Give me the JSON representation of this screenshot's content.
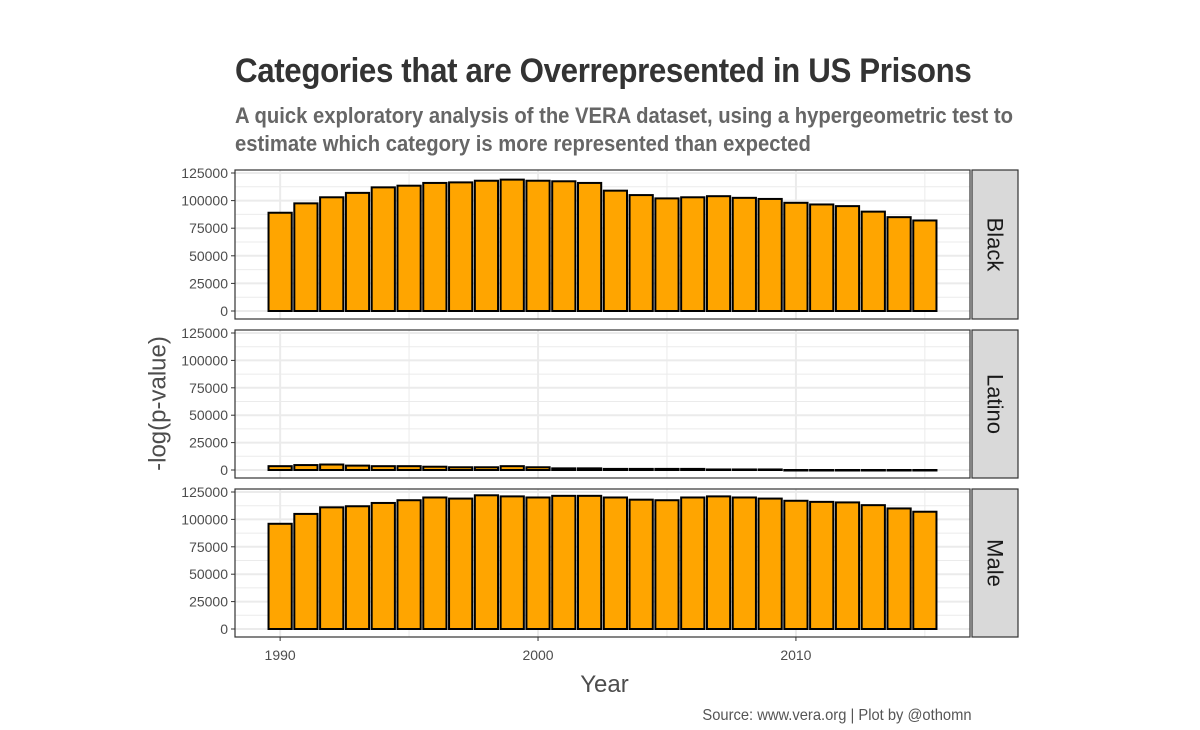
{
  "title": "Categories that are Overrepresented in US Prisons",
  "subtitle": "A quick exploratory analysis of the VERA dataset, using a hypergeometric test to estimate which category is more represented than expected",
  "caption": "Source: www.vera.org | Plot by @othomn",
  "colors": {
    "bar_fill": "#FFA500",
    "bar_stroke": "#000000",
    "strip_bg": "#D9D9D9",
    "grid": "#EBEBEB"
  },
  "chart_data": {
    "type": "bar",
    "facet_layout": "rows, strip labels on right",
    "xlabel": "Year",
    "ylabel": "-log(p-value)",
    "x_ticks": [
      1990,
      2000,
      2010
    ],
    "y_ticks": [
      0,
      25000,
      50000,
      75000,
      100000,
      125000
    ],
    "ylim": [
      0,
      125000
    ],
    "grid": true,
    "years": [
      1990,
      1991,
      1992,
      1993,
      1994,
      1995,
      1996,
      1997,
      1998,
      1999,
      2000,
      2001,
      2002,
      2003,
      2004,
      2005,
      2006,
      2007,
      2008,
      2009,
      2010,
      2011,
      2012,
      2013,
      2014,
      2015
    ],
    "facets": [
      {
        "name": "Black",
        "values": [
          89000,
          97500,
          103000,
          107000,
          112000,
          113500,
          116000,
          116500,
          118000,
          119000,
          118000,
          117500,
          116000,
          109000,
          105000,
          102000,
          103000,
          104000,
          102500,
          101500,
          98000,
          96500,
          95000,
          90000,
          85000,
          82000
        ]
      },
      {
        "name": "Latino",
        "values": [
          3500,
          4500,
          5000,
          4000,
          3500,
          3500,
          3000,
          2500,
          2500,
          3500,
          2500,
          1500,
          1500,
          1000,
          1000,
          1000,
          1000,
          500,
          500,
          500,
          0,
          0,
          0,
          0,
          0,
          0
        ]
      },
      {
        "name": "Male",
        "values": [
          96000,
          105000,
          111000,
          112000,
          115000,
          117500,
          120000,
          119000,
          122000,
          121000,
          120000,
          121500,
          121500,
          120000,
          118000,
          117500,
          120000,
          121000,
          120000,
          119000,
          117000,
          116000,
          115500,
          113000,
          110000,
          107000
        ]
      }
    ]
  }
}
